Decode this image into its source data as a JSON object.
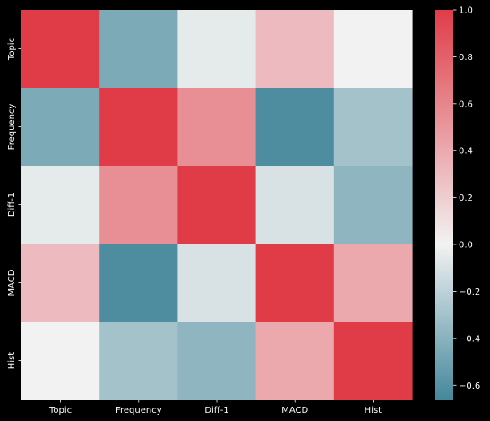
{
  "chart_data": {
    "type": "heatmap",
    "title": "",
    "xlabel": "",
    "ylabel": "",
    "x_categories": [
      "Topic",
      "Frequency",
      "Diff-1",
      "MACD",
      "Hist"
    ],
    "y_categories": [
      "Topic",
      "Frequency",
      "Diff-1",
      "MACD",
      "Hist"
    ],
    "values": [
      [
        1.0,
        -0.45,
        -0.05,
        0.3,
        0.0
      ],
      [
        -0.45,
        1.0,
        0.55,
        -0.63,
        -0.3
      ],
      [
        -0.05,
        0.55,
        1.0,
        -0.1,
        -0.38
      ],
      [
        0.3,
        -0.63,
        -0.1,
        1.0,
        0.4
      ],
      [
        0.0,
        -0.3,
        -0.38,
        0.4,
        1.0
      ]
    ],
    "colorbar": {
      "range": [
        -0.66,
        1.0
      ],
      "ticks": [
        -0.6,
        -0.4,
        -0.2,
        0.0,
        0.2,
        0.4,
        0.6,
        0.8,
        1.0
      ],
      "tick_labels": [
        "−0.6",
        "−0.4",
        "−0.2",
        "0.0",
        "0.2",
        "0.4",
        "0.6",
        "0.8",
        "1.0"
      ]
    },
    "colors": {
      "low": "#45889b",
      "mid": "#f2f2f2",
      "high": "#e03c48",
      "background": "#000000",
      "text": "#ffffff"
    },
    "grid": false,
    "legend": "colorbar-right"
  }
}
